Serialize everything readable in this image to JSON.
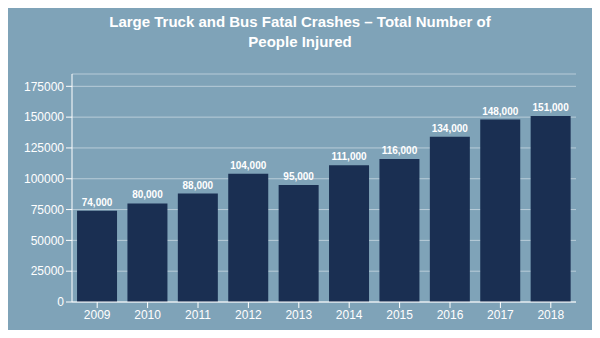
{
  "chart_data": {
    "type": "bar",
    "title": "Large Truck and Bus Fatal Crashes – Total Number of\nPeople Injured",
    "categories": [
      "2009",
      "2010",
      "2011",
      "2012",
      "2013",
      "2014",
      "2015",
      "2016",
      "2017",
      "2018"
    ],
    "values": [
      74000,
      80000,
      88000,
      104000,
      95000,
      111000,
      116000,
      134000,
      148000,
      151000
    ],
    "value_labels": [
      "74,000",
      "80,000",
      "88,000",
      "104,000",
      "95,000",
      "111,000",
      "116,000",
      "134,000",
      "148,000",
      "151,000"
    ],
    "data_labels": true,
    "color": "#1a2f52",
    "ylim": [
      0,
      185000
    ],
    "yticks": [
      0,
      25000,
      50000,
      75000,
      100000,
      125000,
      150000,
      175000
    ],
    "grid": true
  }
}
